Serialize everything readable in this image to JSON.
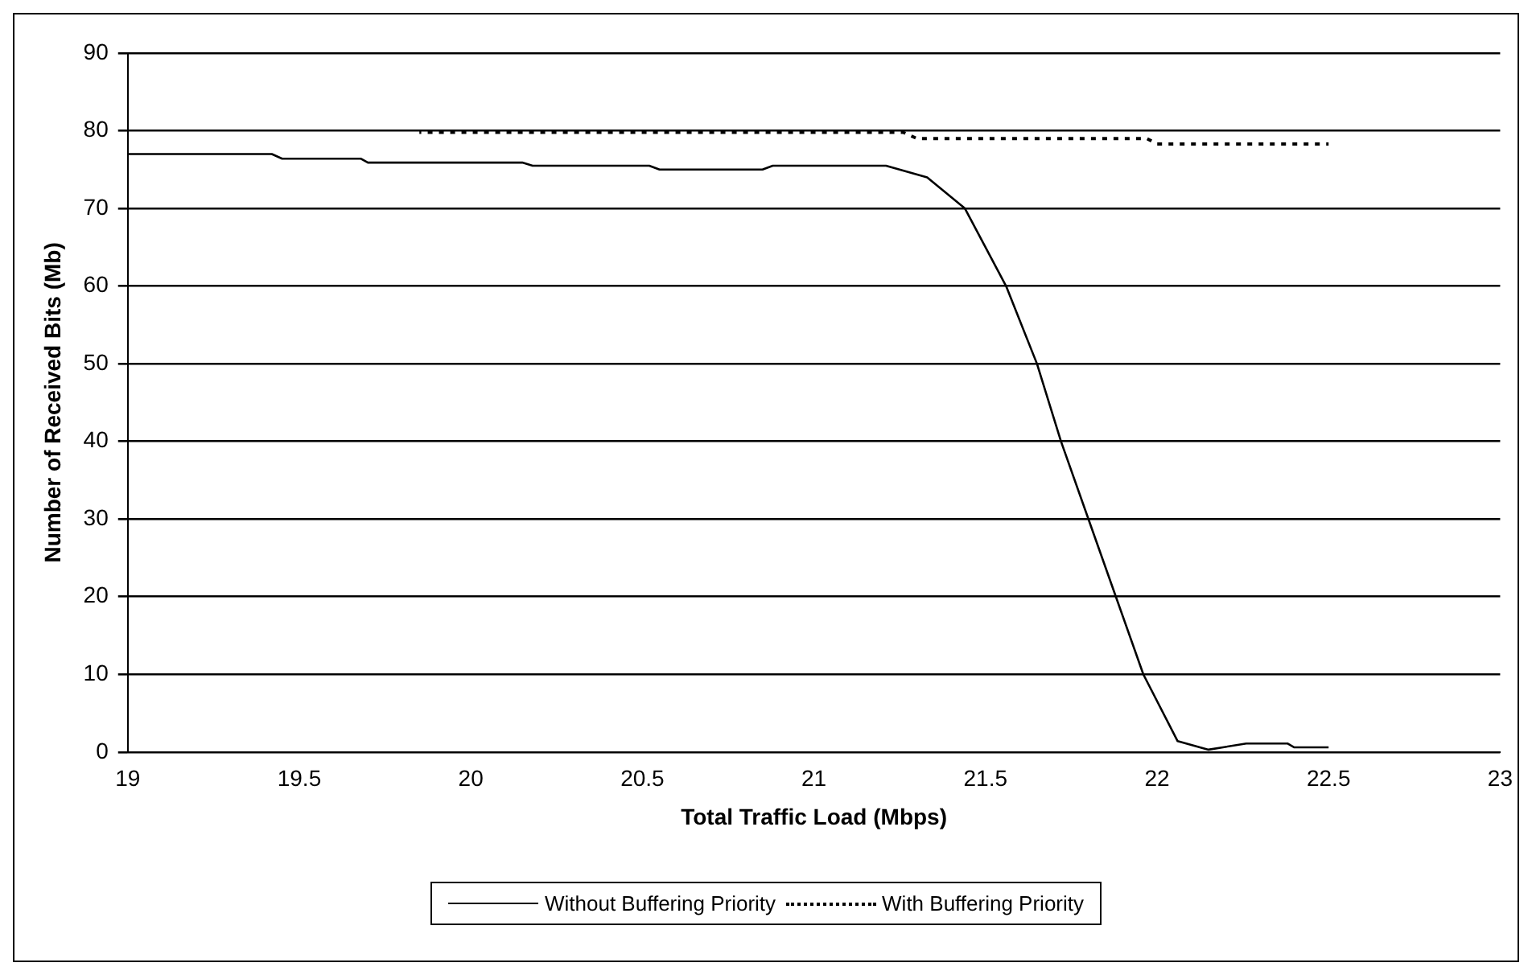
{
  "chart_data": {
    "type": "line",
    "xlabel": "Total Traffic Load (Mbps)",
    "ylabel": "Number of Received Bits (Mb)",
    "xlim": [
      19,
      23
    ],
    "xticks": [
      19,
      19.5,
      20,
      20.5,
      21,
      21.5,
      22,
      22.5,
      23
    ],
    "ylim": [
      0,
      90
    ],
    "yticks": [
      0,
      10,
      20,
      30,
      40,
      50,
      60,
      70,
      80,
      90
    ],
    "grid": "y",
    "legend": "bottom",
    "marker": "none",
    "series": [
      {
        "name": "Without Buffering Priority",
        "color": "#000000",
        "line_style": "solid",
        "x": [
          19,
          19.42,
          19.45,
          19.68,
          19.7,
          20.15,
          20.18,
          20.52,
          20.55,
          20.85,
          20.88,
          21.21,
          21.33,
          21.44,
          21.56,
          21.65,
          21.72,
          21.8,
          21.88,
          21.96,
          22.06,
          22.15,
          22.26,
          22.38,
          22.4,
          22.5
        ],
        "values": [
          77,
          77,
          76.4,
          76.4,
          75.9,
          75.9,
          75.5,
          75.5,
          75,
          75,
          75.5,
          75.5,
          74,
          70,
          60,
          50,
          40,
          30,
          20,
          10,
          1.4,
          0.3,
          1.1,
          1.1,
          0.6,
          0.6
        ]
      },
      {
        "name": "With Buffering Priority",
        "color": "#000000",
        "line_style": "dotted",
        "x": [
          19.85,
          21.26,
          21.3,
          21.97,
          22,
          22.5
        ],
        "values": [
          79.8,
          79.8,
          79,
          79,
          78.3,
          78.3
        ]
      }
    ]
  }
}
